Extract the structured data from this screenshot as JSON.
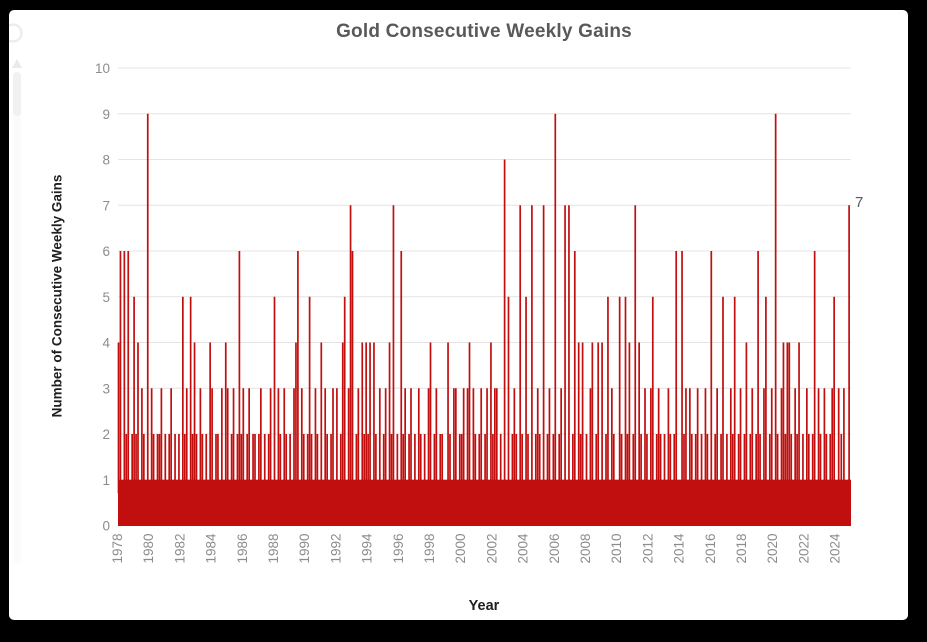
{
  "colors": {
    "frame_background": "#000000",
    "panel_background": "#FFFFFF"
  },
  "chart_data": {
    "type": "bar",
    "title": "Gold Consecutive Weekly Gains",
    "xlabel": "Year",
    "ylabel": "Number of Consecutive Weekly Gains",
    "ylim": [
      0,
      10
    ],
    "yticks": [
      0,
      1,
      2,
      3,
      4,
      5,
      6,
      7,
      8,
      9,
      10
    ],
    "xtick_years": [
      1978,
      1980,
      1982,
      1984,
      1986,
      1988,
      1990,
      1992,
      1994,
      1996,
      1998,
      2000,
      2002,
      2004,
      2006,
      2008,
      2010,
      2012,
      2014,
      2016,
      2018,
      2020,
      2022,
      2024
    ],
    "grid": "horizontal",
    "legend": "none",
    "bar_color": "#C10E0E",
    "gridline_color": "#E4E4E4",
    "axis_text_color": "#8C8C8C",
    "title_color": "#595959",
    "axis_title_color": "#1F1F1F",
    "last_point_label": "7",
    "note": "Each bar is one streak of consecutive weekly gains; streaks evenly spaced within each year; estimated from pixels",
    "values_by_year": {
      "1978": [
        4,
        6,
        1,
        6,
        2,
        6,
        1,
        2
      ],
      "1979": [
        5,
        2,
        4,
        1,
        3,
        2,
        1,
        9
      ],
      "1980": [
        1,
        3,
        2,
        1,
        2,
        2,
        3,
        1
      ],
      "1981": [
        2,
        1,
        2,
        3,
        1,
        2,
        1,
        2
      ],
      "1982": [
        1,
        5,
        2,
        3,
        1,
        5,
        2,
        4
      ],
      "1983": [
        2,
        1,
        3,
        2,
        1,
        2,
        1,
        4
      ],
      "1984": [
        3,
        1,
        2,
        2,
        1,
        3,
        1,
        4
      ],
      "1985": [
        3,
        1,
        2,
        3,
        1,
        2,
        6,
        2
      ],
      "1986": [
        3,
        1,
        2,
        3,
        1,
        2,
        2,
        1
      ],
      "1987": [
        2,
        3,
        1,
        2,
        1,
        2,
        3,
        1
      ],
      "1988": [
        5,
        1,
        3,
        2,
        1,
        3,
        2,
        1
      ],
      "1989": [
        2,
        1,
        3,
        4,
        6,
        1,
        3,
        2
      ],
      "1990": [
        1,
        2,
        5,
        2,
        1,
        3,
        2,
        1
      ],
      "1991": [
        4,
        1,
        3,
        2,
        1,
        2,
        3,
        1
      ],
      "1992": [
        3,
        1,
        2,
        4,
        5,
        1,
        3,
        7
      ],
      "1993": [
        6,
        1,
        2,
        3,
        1,
        4,
        2,
        4
      ],
      "1994": [
        2,
        4,
        1,
        4,
        2,
        1,
        3,
        1
      ],
      "1995": [
        2,
        3,
        1,
        4,
        2,
        7,
        1,
        2
      ],
      "1996": [
        1,
        6,
        2,
        3,
        1,
        2,
        3,
        1
      ],
      "1997": [
        2,
        1,
        3,
        2,
        1,
        2,
        1,
        3
      ],
      "1998": [
        4,
        1,
        2,
        3,
        1,
        2,
        2,
        1
      ],
      "1999": [
        1,
        4,
        2,
        1,
        3,
        3,
        1,
        2
      ],
      "2000": [
        2,
        3,
        1,
        3,
        4,
        1,
        3,
        2
      ],
      "2001": [
        1,
        2,
        3,
        1,
        2,
        3,
        1,
        4
      ],
      "2002": [
        2,
        3,
        3,
        1,
        2,
        1,
        8,
        1
      ],
      "2003": [
        5,
        1,
        2,
        3,
        2,
        1,
        7,
        2
      ],
      "2004": [
        1,
        5,
        2,
        1,
        7,
        1,
        2,
        3
      ],
      "2005": [
        2,
        1,
        7,
        1,
        2,
        3,
        1,
        2
      ],
      "2006": [
        9,
        1,
        2,
        3,
        1,
        7,
        1,
        7
      ],
      "2007": [
        1,
        2,
        6,
        1,
        4,
        2,
        4,
        1
      ],
      "2008": [
        2,
        1,
        3,
        4,
        1,
        2,
        4,
        1
      ],
      "2009": [
        4,
        1,
        2,
        5,
        1,
        3,
        2,
        1
      ],
      "2010": [
        1,
        5,
        2,
        1,
        5,
        2,
        4,
        1
      ],
      "2011": [
        2,
        7,
        1,
        4,
        2,
        1,
        3,
        2
      ],
      "2012": [
        1,
        3,
        5,
        1,
        2,
        3,
        2,
        1
      ],
      "2013": [
        2,
        1,
        3,
        2,
        1,
        2,
        6,
        1
      ],
      "2014": [
        1,
        6,
        2,
        3,
        1,
        3,
        2,
        1
      ],
      "2015": [
        2,
        3,
        1,
        2,
        1,
        3,
        2,
        1
      ],
      "2016": [
        6,
        1,
        2,
        3,
        1,
        2,
        5,
        1
      ],
      "2017": [
        2,
        1,
        3,
        2,
        5,
        1,
        2,
        3
      ],
      "2018": [
        1,
        2,
        4,
        1,
        2,
        3,
        1,
        2
      ],
      "2019": [
        6,
        2,
        1,
        3,
        5,
        1,
        2,
        3
      ],
      "2020": [
        1,
        9,
        2,
        1,
        3,
        4,
        2,
        4
      ],
      "2021": [
        4,
        2,
        1,
        3,
        2,
        4,
        1,
        2
      ],
      "2022": [
        1,
        3,
        2,
        1,
        2,
        6,
        1,
        3
      ],
      "2023": [
        2,
        1,
        3,
        2,
        1,
        2,
        3,
        5
      ],
      "2024": [
        1,
        3,
        2,
        3,
        1,
        7
      ]
    }
  }
}
